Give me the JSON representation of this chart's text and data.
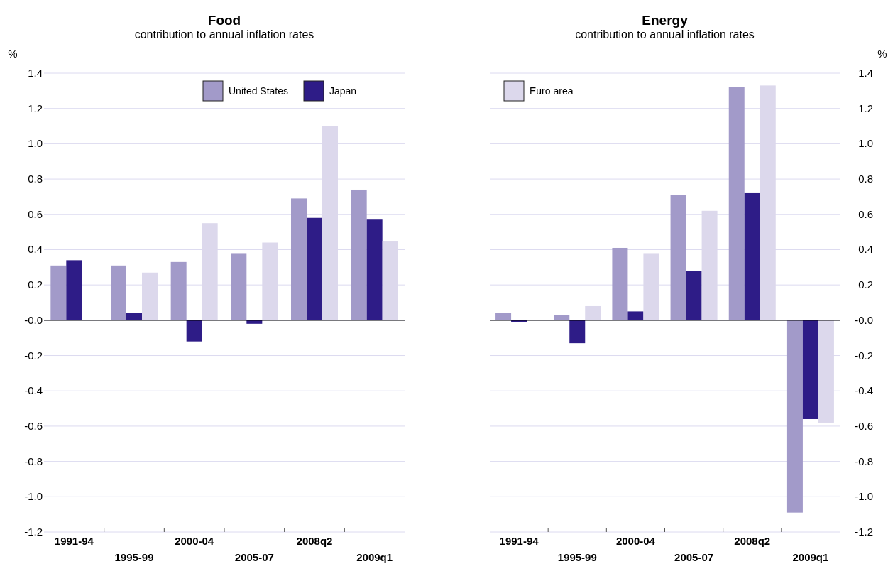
{
  "chart_data": [
    {
      "type": "bar",
      "title": "Food",
      "subtitle": "contribution to annual inflation rates",
      "ylabel": "%",
      "categories": [
        "1991-94",
        "1995-99",
        "2000-04",
        "2005-07",
        "2008q2",
        "2009q1"
      ],
      "series": [
        {
          "name": "United States",
          "color": "#a29ac9",
          "values": [
            0.31,
            0.31,
            0.33,
            0.38,
            0.69,
            0.74
          ]
        },
        {
          "name": "Japan",
          "color": "#2e1c87",
          "values": [
            0.34,
            0.04,
            -0.12,
            -0.02,
            0.58,
            0.57
          ]
        },
        {
          "color": "#dcd8ec",
          "values": [
            null,
            0.27,
            0.55,
            0.44,
            1.1,
            0.45
          ]
        }
      ],
      "ylim": [
        -1.2,
        1.4
      ],
      "yticks": [
        {
          "value": -1.2,
          "label": "-1.2"
        },
        {
          "value": -1.0,
          "label": "-1.0"
        },
        {
          "value": -0.8,
          "label": "-0.8"
        },
        {
          "value": -0.6,
          "label": "-0.6"
        },
        {
          "value": -0.4,
          "label": "-0.4"
        },
        {
          "value": -0.2,
          "label": "-0.2"
        },
        {
          "value": 0,
          "label": "-0.0"
        },
        {
          "value": 0.2,
          "label": "0.2"
        },
        {
          "value": 0.4,
          "label": "0.4"
        },
        {
          "value": 0.6,
          "label": "0.6"
        },
        {
          "value": 0.8,
          "label": "0.8"
        },
        {
          "value": 1.0,
          "label": "1.0"
        },
        {
          "value": 1.2,
          "label": "1.2"
        },
        {
          "value": 1.4,
          "label": "1.4"
        }
      ],
      "grid": "y",
      "legend": "top right"
    },
    {
      "type": "bar",
      "title": "Energy",
      "subtitle": "contribution to annual inflation rates",
      "y2label": "%",
      "categories": [
        "1991-94",
        "1995-99",
        "2000-04",
        "2005-07",
        "2008q2",
        "2009q1"
      ],
      "series": [
        {
          "color": "#a29ac9",
          "axis": "y2",
          "values": [
            0.04,
            0.03,
            0.41,
            0.71,
            1.32,
            -1.09
          ]
        },
        {
          "color": "#2e1c87",
          "axis": "y2",
          "values": [
            -0.01,
            -0.13,
            0.05,
            0.28,
            0.72,
            -0.56
          ]
        },
        {
          "name": "Euro area",
          "color": "#dcd8ec",
          "axis": "y2",
          "values": [
            null,
            0.08,
            0.38,
            0.62,
            1.33,
            -0.58
          ]
        }
      ],
      "y2lim": [
        -1.2,
        1.4
      ],
      "y2ticks": [
        {
          "value": -1.2,
          "label": "-1.2"
        },
        {
          "value": -1.0,
          "label": "-1.0"
        },
        {
          "value": -0.8,
          "label": "-0.8"
        },
        {
          "value": -0.6,
          "label": "-0.6"
        },
        {
          "value": -0.4,
          "label": "-0.4"
        },
        {
          "value": -0.2,
          "label": "-0.2"
        },
        {
          "value": 0,
          "label": "-0.0"
        },
        {
          "value": 0.2,
          "label": "0.2"
        },
        {
          "value": 0.4,
          "label": "0.4"
        },
        {
          "value": 0.6,
          "label": "0.6"
        },
        {
          "value": 0.8,
          "label": "0.8"
        },
        {
          "value": 1.0,
          "label": "1.0"
        },
        {
          "value": 1.2,
          "label": "1.2"
        },
        {
          "value": 1.4,
          "label": "1.4"
        }
      ],
      "grid": "y",
      "legend": "top left"
    }
  ]
}
